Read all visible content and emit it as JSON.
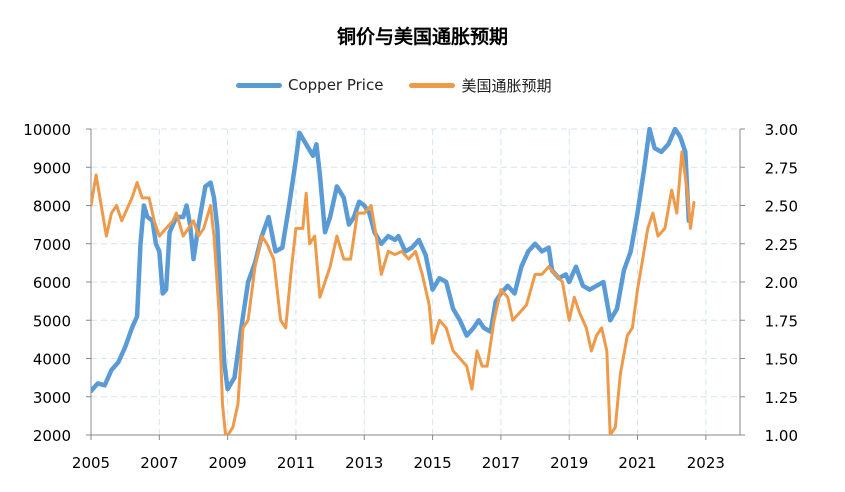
{
  "chart_data": {
    "type": "line",
    "title": "铜价与美国通胀预期",
    "colors": {
      "copper": "#5b9bd5",
      "inflation": "#ed9a4a"
    },
    "x_ticks": [
      "2005",
      "2007",
      "2009",
      "2011",
      "2013",
      "2015",
      "2017",
      "2019",
      "2021",
      "2023"
    ],
    "xlim": [
      2005,
      2024
    ],
    "y_left": {
      "ticks": [
        "10000",
        "9000",
        "8000",
        "7000",
        "6000",
        "5000",
        "4000",
        "3000",
        "2000"
      ],
      "ylim": [
        2000,
        10000
      ]
    },
    "y_right": {
      "ticks": [
        "3.00",
        "2.75",
        "2.50",
        "2.25",
        "2.00",
        "1.75",
        "1.50",
        "1.25",
        "1.00"
      ],
      "ylim": [
        1.0,
        3.0
      ]
    },
    "series": [
      {
        "name": "Copper Price",
        "axis": "left",
        "points": [
          [
            2005.0,
            3150
          ],
          [
            2005.2,
            3350
          ],
          [
            2005.4,
            3300
          ],
          [
            2005.6,
            3700
          ],
          [
            2005.8,
            3900
          ],
          [
            2006.0,
            4300
          ],
          [
            2006.2,
            4800
          ],
          [
            2006.35,
            5100
          ],
          [
            2006.45,
            7000
          ],
          [
            2006.55,
            8000
          ],
          [
            2006.65,
            7700
          ],
          [
            2006.8,
            7600
          ],
          [
            2006.9,
            7000
          ],
          [
            2007.0,
            6800
          ],
          [
            2007.1,
            5700
          ],
          [
            2007.2,
            5800
          ],
          [
            2007.3,
            7300
          ],
          [
            2007.5,
            7700
          ],
          [
            2007.7,
            7700
          ],
          [
            2007.8,
            8000
          ],
          [
            2007.9,
            7500
          ],
          [
            2008.0,
            6600
          ],
          [
            2008.15,
            7500
          ],
          [
            2008.35,
            8500
          ],
          [
            2008.5,
            8600
          ],
          [
            2008.6,
            8200
          ],
          [
            2008.7,
            7400
          ],
          [
            2008.8,
            5500
          ],
          [
            2008.9,
            3900
          ],
          [
            2009.0,
            3200
          ],
          [
            2009.2,
            3500
          ],
          [
            2009.4,
            4800
          ],
          [
            2009.6,
            6000
          ],
          [
            2009.8,
            6500
          ],
          [
            2010.0,
            7200
          ],
          [
            2010.2,
            7700
          ],
          [
            2010.4,
            6800
          ],
          [
            2010.6,
            6900
          ],
          [
            2010.8,
            8000
          ],
          [
            2011.0,
            9200
          ],
          [
            2011.1,
            9900
          ],
          [
            2011.3,
            9600
          ],
          [
            2011.5,
            9300
          ],
          [
            2011.6,
            9600
          ],
          [
            2011.7,
            8800
          ],
          [
            2011.85,
            7300
          ],
          [
            2012.0,
            7700
          ],
          [
            2012.2,
            8500
          ],
          [
            2012.4,
            8200
          ],
          [
            2012.55,
            7500
          ],
          [
            2012.7,
            7700
          ],
          [
            2012.85,
            8100
          ],
          [
            2013.0,
            8000
          ],
          [
            2013.15,
            7800
          ],
          [
            2013.3,
            7300
          ],
          [
            2013.5,
            7000
          ],
          [
            2013.7,
            7200
          ],
          [
            2013.9,
            7100
          ],
          [
            2014.0,
            7200
          ],
          [
            2014.2,
            6800
          ],
          [
            2014.4,
            6900
          ],
          [
            2014.6,
            7100
          ],
          [
            2014.8,
            6700
          ],
          [
            2015.0,
            5800
          ],
          [
            2015.2,
            6100
          ],
          [
            2015.4,
            6000
          ],
          [
            2015.6,
            5300
          ],
          [
            2015.8,
            5000
          ],
          [
            2016.0,
            4600
          ],
          [
            2016.2,
            4800
          ],
          [
            2016.35,
            5000
          ],
          [
            2016.5,
            4800
          ],
          [
            2016.7,
            4700
          ],
          [
            2016.85,
            5500
          ],
          [
            2017.0,
            5700
          ],
          [
            2017.2,
            5900
          ],
          [
            2017.4,
            5700
          ],
          [
            2017.6,
            6400
          ],
          [
            2017.8,
            6800
          ],
          [
            2018.0,
            7000
          ],
          [
            2018.2,
            6800
          ],
          [
            2018.4,
            6900
          ],
          [
            2018.5,
            6300
          ],
          [
            2018.7,
            6100
          ],
          [
            2018.9,
            6200
          ],
          [
            2019.0,
            6000
          ],
          [
            2019.2,
            6400
          ],
          [
            2019.4,
            5900
          ],
          [
            2019.6,
            5800
          ],
          [
            2019.8,
            5900
          ],
          [
            2020.0,
            6000
          ],
          [
            2020.2,
            5000
          ],
          [
            2020.4,
            5300
          ],
          [
            2020.6,
            6300
          ],
          [
            2020.8,
            6800
          ],
          [
            2021.0,
            7800
          ],
          [
            2021.2,
            9000
          ],
          [
            2021.35,
            10000
          ],
          [
            2021.5,
            9500
          ],
          [
            2021.7,
            9400
          ],
          [
            2021.9,
            9600
          ],
          [
            2022.1,
            10000
          ],
          [
            2022.25,
            9800
          ],
          [
            2022.4,
            9400
          ],
          [
            2022.5,
            7600
          ]
        ]
      },
      {
        "name": "美国通胀预期",
        "axis": "right",
        "points": [
          [
            2005.0,
            2.5
          ],
          [
            2005.15,
            2.7
          ],
          [
            2005.3,
            2.5
          ],
          [
            2005.45,
            2.3
          ],
          [
            2005.6,
            2.45
          ],
          [
            2005.75,
            2.5
          ],
          [
            2005.9,
            2.4
          ],
          [
            2006.0,
            2.45
          ],
          [
            2006.2,
            2.55
          ],
          [
            2006.35,
            2.65
          ],
          [
            2006.5,
            2.55
          ],
          [
            2006.7,
            2.55
          ],
          [
            2006.85,
            2.4
          ],
          [
            2007.0,
            2.3
          ],
          [
            2007.2,
            2.35
          ],
          [
            2007.4,
            2.4
          ],
          [
            2007.5,
            2.45
          ],
          [
            2007.7,
            2.3
          ],
          [
            2007.85,
            2.35
          ],
          [
            2008.0,
            2.4
          ],
          [
            2008.15,
            2.3
          ],
          [
            2008.3,
            2.35
          ],
          [
            2008.5,
            2.5
          ],
          [
            2008.6,
            2.3
          ],
          [
            2008.75,
            1.8
          ],
          [
            2008.85,
            1.2
          ],
          [
            2008.95,
            0.98
          ],
          [
            2009.15,
            1.05
          ],
          [
            2009.3,
            1.2
          ],
          [
            2009.45,
            1.7
          ],
          [
            2009.6,
            1.75
          ],
          [
            2009.8,
            2.1
          ],
          [
            2010.0,
            2.3
          ],
          [
            2010.15,
            2.25
          ],
          [
            2010.35,
            2.15
          ],
          [
            2010.55,
            1.75
          ],
          [
            2010.7,
            1.7
          ],
          [
            2010.85,
            2.05
          ],
          [
            2011.0,
            2.35
          ],
          [
            2011.2,
            2.35
          ],
          [
            2011.3,
            2.58
          ],
          [
            2011.4,
            2.25
          ],
          [
            2011.55,
            2.3
          ],
          [
            2011.7,
            1.9
          ],
          [
            2011.85,
            2.0
          ],
          [
            2012.0,
            2.1
          ],
          [
            2012.2,
            2.3
          ],
          [
            2012.4,
            2.15
          ],
          [
            2012.6,
            2.15
          ],
          [
            2012.8,
            2.45
          ],
          [
            2013.0,
            2.45
          ],
          [
            2013.2,
            2.5
          ],
          [
            2013.35,
            2.3
          ],
          [
            2013.5,
            2.05
          ],
          [
            2013.7,
            2.2
          ],
          [
            2013.9,
            2.18
          ],
          [
            2014.1,
            2.2
          ],
          [
            2014.3,
            2.15
          ],
          [
            2014.5,
            2.2
          ],
          [
            2014.7,
            2.05
          ],
          [
            2014.9,
            1.85
          ],
          [
            2015.0,
            1.6
          ],
          [
            2015.2,
            1.75
          ],
          [
            2015.4,
            1.7
          ],
          [
            2015.6,
            1.55
          ],
          [
            2015.8,
            1.5
          ],
          [
            2016.0,
            1.45
          ],
          [
            2016.15,
            1.3
          ],
          [
            2016.3,
            1.55
          ],
          [
            2016.45,
            1.45
          ],
          [
            2016.6,
            1.45
          ],
          [
            2016.8,
            1.75
          ],
          [
            2017.0,
            1.95
          ],
          [
            2017.2,
            1.9
          ],
          [
            2017.35,
            1.75
          ],
          [
            2017.55,
            1.8
          ],
          [
            2017.75,
            1.85
          ],
          [
            2018.0,
            2.05
          ],
          [
            2018.2,
            2.05
          ],
          [
            2018.4,
            2.1
          ],
          [
            2018.6,
            2.05
          ],
          [
            2018.8,
            2.0
          ],
          [
            2019.0,
            1.75
          ],
          [
            2019.15,
            1.9
          ],
          [
            2019.3,
            1.8
          ],
          [
            2019.5,
            1.7
          ],
          [
            2019.65,
            1.55
          ],
          [
            2019.8,
            1.65
          ],
          [
            2019.95,
            1.7
          ],
          [
            2020.1,
            1.55
          ],
          [
            2020.2,
            1.0
          ],
          [
            2020.35,
            1.05
          ],
          [
            2020.5,
            1.4
          ],
          [
            2020.7,
            1.65
          ],
          [
            2020.85,
            1.7
          ],
          [
            2021.0,
            1.95
          ],
          [
            2021.15,
            2.15
          ],
          [
            2021.3,
            2.35
          ],
          [
            2021.45,
            2.45
          ],
          [
            2021.6,
            2.3
          ],
          [
            2021.8,
            2.35
          ],
          [
            2022.0,
            2.6
          ],
          [
            2022.15,
            2.45
          ],
          [
            2022.3,
            2.85
          ],
          [
            2022.45,
            2.6
          ],
          [
            2022.55,
            2.35
          ],
          [
            2022.65,
            2.52
          ]
        ]
      }
    ]
  }
}
